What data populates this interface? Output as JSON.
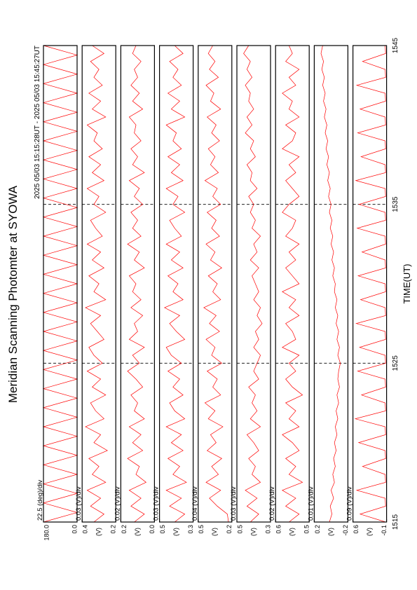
{
  "chart_data": {
    "type": "line",
    "title": "Meridian Scanning Photomter at SYOWA",
    "subtitle": "2025 05/03 15:15:28UT - 2025 05/03 15:45:27UT",
    "xlabel": "TIME(UT)",
    "xlim": [
      1515,
      1545
    ],
    "xticks": [
      1515,
      1525,
      1535,
      1545
    ],
    "grid": true,
    "x": [
      1515,
      1515.5,
      1516,
      1516.5,
      1517,
      1517.5,
      1518,
      1518.5,
      1519,
      1519.5,
      1520,
      1520.5,
      1521,
      1521.5,
      1522,
      1522.5,
      1523,
      1523.5,
      1524,
      1524.5,
      1525,
      1525.5,
      1526,
      1526.5,
      1527,
      1527.5,
      1528,
      1528.5,
      1529,
      1529.5,
      1530,
      1530.5,
      1531,
      1531.5,
      1532,
      1532.5,
      1533,
      1533.5,
      1534,
      1534.5,
      1535,
      1535.5,
      1536,
      1536.5,
      1537,
      1537.5,
      1538,
      1538.5,
      1539,
      1539.5,
      1540,
      1540.5,
      1541,
      1541.5,
      1542,
      1542.5,
      1543,
      1543.5,
      1544,
      1544.5,
      1545
    ],
    "panels": [
      {
        "label": "22.5 (deg)/div",
        "ylim": [
          0,
          180
        ],
        "yticks": [
          {
            "value": 180,
            "label": "180.0"
          },
          {
            "value": 0,
            "label": "0.0"
          }
        ],
        "x": [
          1515,
          1515.6,
          1516.2,
          1516.8,
          1517.4,
          1518,
          1518.6,
          1519.2,
          1519.8,
          1520.4,
          1521,
          1521.6,
          1522.2,
          1522.8,
          1523.4,
          1524,
          1524.6,
          1525.2,
          1525.8,
          1526.4,
          1527,
          1527.6,
          1528.2,
          1528.8,
          1529.4,
          1530,
          1530.6,
          1531.2,
          1531.8,
          1532.4,
          1533,
          1533.6,
          1534.2,
          1534.8,
          1535.4,
          1536,
          1536.6,
          1537.2,
          1537.8,
          1538.4,
          1539,
          1539.6,
          1540.2,
          1540.8,
          1541.4,
          1542,
          1542.6,
          1543.2,
          1543.8,
          1544.4,
          1545
        ],
        "series": [
          {
            "color": "#ff0000",
            "values": [
              180,
              0,
              180,
              0,
              180,
              0,
              180,
              0,
              180,
              0,
              180,
              0,
              180,
              0,
              180,
              0,
              180,
              0,
              180,
              0,
              180,
              0,
              180,
              0,
              180,
              0,
              180,
              0,
              180,
              0,
              180,
              0,
              180,
              0,
              180,
              0,
              180,
              0,
              180,
              0,
              180,
              0,
              180,
              0,
              180,
              0,
              180,
              0,
              180,
              0,
              180
            ]
          }
        ]
      },
      {
        "label": "0.03 (V)/div",
        "ylabel": "(V)",
        "ylim": [
          0.2,
          0.4
        ],
        "yticks": [
          0.4,
          0.2
        ],
        "series": [
          {
            "color": "#ff0000",
            "values": [
              0.33,
              0.27,
              0.35,
              0.29,
              0.37,
              0.26,
              0.34,
              0.3,
              0.36,
              0.25,
              0.33,
              0.29,
              0.38,
              0.27,
              0.32,
              0.35,
              0.26,
              0.34,
              0.29,
              0.37,
              0.28,
              0.33,
              0.36,
              0.27,
              0.31,
              0.35,
              0.29,
              0.38,
              0.26,
              0.33,
              0.3,
              0.36,
              0.27,
              0.34,
              0.29,
              0.37,
              0.28,
              0.32,
              0.35,
              0.26,
              0.33,
              0.3,
              0.37,
              0.27,
              0.34,
              0.29,
              0.36,
              0.28,
              0.33,
              0.31,
              0.37,
              0.26,
              0.34,
              0.29,
              0.36,
              0.28,
              0.33,
              0.3,
              0.35,
              0.27,
              0.34
            ]
          }
        ]
      },
      {
        "label": "0.02 (V)/div",
        "ylabel": "(V)",
        "ylim": [
          0,
          0.2
        ],
        "yticks": [
          0.2,
          {
            "value": 0,
            "label": "0.0"
          }
        ],
        "series": [
          {
            "color": "#ff0000",
            "values": [
              0.12,
              0.06,
              0.14,
              0.08,
              0.15,
              0.05,
              0.11,
              0.09,
              0.16,
              0.07,
              0.13,
              0.08,
              0.15,
              0.06,
              0.12,
              0.1,
              0.14,
              0.07,
              0.11,
              0.16,
              0.09,
              0.13,
              0.06,
              0.15,
              0.1,
              0.12,
              0.07,
              0.14,
              0.08,
              0.13,
              0.11,
              0.15,
              0.06,
              0.12,
              0.09,
              0.16,
              0.08,
              0.13,
              0.1,
              0.14,
              0.07,
              0.12,
              0.09,
              0.15,
              0.06,
              0.13,
              0.1,
              0.14,
              0.08,
              0.12,
              0.11,
              0.15,
              0.07,
              0.13,
              0.09,
              0.14,
              0.1,
              0.12,
              0.08,
              0.13,
              0.11
            ]
          }
        ]
      },
      {
        "label": "0.03 (V)/div",
        "ylabel": "(V)",
        "ylim": [
          0.3,
          0.5
        ],
        "yticks": [
          0.5,
          0.3
        ],
        "series": [
          {
            "color": "#ff0000",
            "values": [
              0.41,
              0.35,
              0.44,
              0.37,
              0.46,
              0.34,
              0.42,
              0.38,
              0.45,
              0.36,
              0.43,
              0.37,
              0.46,
              0.35,
              0.41,
              0.44,
              0.36,
              0.42,
              0.38,
              0.45,
              0.37,
              0.43,
              0.46,
              0.35,
              0.4,
              0.44,
              0.38,
              0.47,
              0.36,
              0.42,
              0.39,
              0.45,
              0.36,
              0.43,
              0.38,
              0.46,
              0.37,
              0.41,
              0.44,
              0.35,
              0.42,
              0.39,
              0.46,
              0.36,
              0.43,
              0.38,
              0.45,
              0.37,
              0.42,
              0.4,
              0.46,
              0.35,
              0.43,
              0.38,
              0.45,
              0.37,
              0.42,
              0.39,
              0.44,
              0.36,
              0.41
            ]
          }
        ]
      },
      {
        "label": "0.04 (V)/div",
        "ylabel": "(V)",
        "ylim": [
          0.2,
          0.5
        ],
        "yticks": [
          0.5,
          0.2
        ],
        "series": [
          {
            "color": "#ff0000",
            "values": [
              0.23,
              0.24,
              0.33,
              0.4,
              0.3,
              0.43,
              0.32,
              0.38,
              0.29,
              0.42,
              0.34,
              0.39,
              0.28,
              0.41,
              0.35,
              0.44,
              0.3,
              0.37,
              0.33,
              0.42,
              0.29,
              0.38,
              0.35,
              0.43,
              0.31,
              0.4,
              0.34,
              0.45,
              0.3,
              0.37,
              0.33,
              0.41,
              0.29,
              0.39,
              0.35,
              0.43,
              0.31,
              0.38,
              0.34,
              0.42,
              0.3,
              0.37,
              0.33,
              0.44,
              0.32,
              0.39,
              0.35,
              0.41,
              0.31,
              0.38,
              0.34,
              0.42,
              0.3,
              0.39,
              0.36,
              0.43,
              0.32,
              0.4,
              0.35,
              0.41,
              0.37
            ]
          }
        ]
      },
      {
        "label": "0.03 (V)/div",
        "ylabel": "(V)",
        "ylim": [
          0.3,
          0.5
        ],
        "yticks": [
          0.5,
          0.3
        ],
        "series": [
          {
            "color": "#ff0000",
            "values": [
              0.42,
              0.37,
              0.44,
              0.38,
              0.45,
              0.36,
              0.41,
              0.39,
              0.43,
              0.37,
              0.4,
              0.44,
              0.36,
              0.42,
              0.38,
              0.41,
              0.39,
              0.43,
              0.37,
              0.4,
              0.38,
              0.36,
              0.4,
              0.37,
              0.39,
              0.35,
              0.38,
              0.36,
              0.4,
              0.37,
              0.39,
              0.41,
              0.37,
              0.42,
              0.38,
              0.4,
              0.36,
              0.41,
              0.39,
              0.42,
              0.4,
              0.43,
              0.38,
              0.42,
              0.41,
              0.44,
              0.39,
              0.42,
              0.4,
              0.45,
              0.41,
              0.44,
              0.4,
              0.43,
              0.42,
              0.45,
              0.41,
              0.44,
              0.42,
              0.46,
              0.43
            ]
          }
        ]
      },
      {
        "label": "0.02 (V)/div",
        "ylabel": "(V)",
        "ylim": [
          0.5,
          0.6
        ],
        "yticks": [
          0.6,
          0.5
        ],
        "series": [
          {
            "color": "#ff0000",
            "values": [
              0.56,
              0.53,
              0.57,
              0.54,
              0.58,
              0.52,
              0.56,
              0.54,
              0.57,
              0.53,
              0.55,
              0.58,
              0.53,
              0.56,
              0.54,
              0.57,
              0.52,
              0.55,
              0.57,
              0.54,
              0.56,
              0.53,
              0.58,
              0.54,
              0.55,
              0.57,
              0.53,
              0.56,
              0.54,
              0.58,
              0.53,
              0.55,
              0.57,
              0.54,
              0.56,
              0.53,
              0.57,
              0.55,
              0.54,
              0.58,
              0.56,
              0.53,
              0.55,
              0.57,
              0.54,
              0.56,
              0.53,
              0.58,
              0.55,
              0.54,
              0.57,
              0.53,
              0.56,
              0.55,
              0.58,
              0.54,
              0.56,
              0.53,
              0.57,
              0.55,
              0.56
            ]
          }
        ]
      },
      {
        "label": "0.01 (V)/div",
        "ylabel": "(V)",
        "ylim": [
          -0.2,
          0.2
        ],
        "yticks": [
          0.2,
          -0.2
        ],
        "series": [
          {
            "color": "#ff0000",
            "values": [
              0.02,
              -0.01,
              0.01,
              -0.03,
              0.0,
              -0.04,
              -0.02,
              -0.05,
              -0.03,
              -0.06,
              -0.04,
              -0.07,
              -0.05,
              -0.08,
              -0.06,
              -0.09,
              -0.07,
              -0.1,
              -0.08,
              -0.09,
              -0.11,
              -0.08,
              -0.1,
              -0.07,
              -0.09,
              -0.06,
              -0.08,
              -0.05,
              -0.07,
              -0.04,
              -0.05,
              -0.02,
              -0.04,
              -0.01,
              -0.03,
              0.0,
              -0.02,
              0.01,
              -0.01,
              0.02,
              0.0,
              0.03,
              0.01,
              0.04,
              0.02,
              0.05,
              0.03,
              0.06,
              0.04,
              0.07,
              0.05,
              0.08,
              0.06,
              0.09,
              0.07,
              0.1,
              0.08,
              0.11,
              0.09,
              0.12,
              0.1
            ]
          }
        ]
      },
      {
        "label": "0.09 (V)/div",
        "ylabel": "(V)",
        "ylim": [
          -0.1,
          0.6
        ],
        "yticks": [
          0.6,
          -0.1
        ],
        "series": [
          {
            "color": "#ff0000",
            "values": [
              -0.08,
              0.45,
              -0.08,
              -0.07,
              0.52,
              -0.08,
              -0.07,
              0.4,
              -0.08,
              -0.07,
              0.48,
              -0.08,
              -0.07,
              0.55,
              -0.08,
              -0.07,
              0.42,
              -0.08,
              -0.07,
              0.5,
              -0.08,
              -0.07,
              0.46,
              -0.08,
              -0.07,
              0.53,
              -0.08,
              -0.07,
              0.44,
              -0.08,
              -0.07,
              0.49,
              -0.08,
              -0.07,
              0.41,
              -0.08,
              -0.07,
              0.51,
              -0.08,
              -0.07,
              0.47,
              -0.08,
              -0.07,
              0.54,
              -0.08,
              -0.07,
              0.43,
              -0.08,
              -0.07,
              0.5,
              -0.08,
              -0.07,
              0.45,
              -0.08,
              -0.07,
              0.52,
              -0.08,
              -0.07,
              0.4,
              -0.08,
              -0.07
            ]
          }
        ]
      }
    ]
  }
}
